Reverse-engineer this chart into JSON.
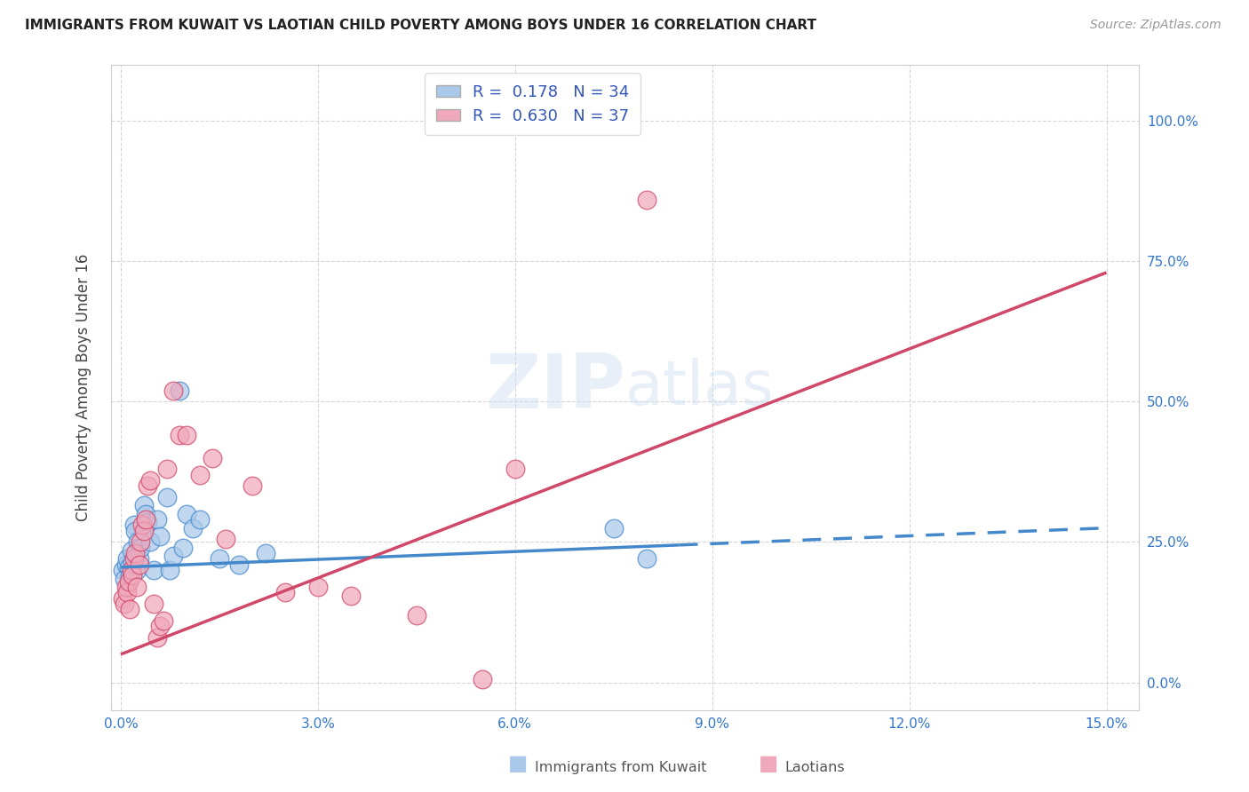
{
  "title": "IMMIGRANTS FROM KUWAIT VS LAOTIAN CHILD POVERTY AMONG BOYS UNDER 16 CORRELATION CHART",
  "source": "Source: ZipAtlas.com",
  "xlabel_vals": [
    0,
    3,
    6,
    9,
    12,
    15
  ],
  "ylabel_vals": [
    0,
    25,
    50,
    75,
    100
  ],
  "xlim": [
    -0.15,
    15.5
  ],
  "ylim": [
    -5,
    110
  ],
  "ylabel": "Child Poverty Among Boys Under 16",
  "kuwait_color": "#aac8ea",
  "kuwait_edge": "#4488cc",
  "laotian_color": "#f0a8bc",
  "laotian_edge": "#d04868",
  "kuwait_R": 0.178,
  "kuwait_N": 34,
  "laotian_R": 0.63,
  "laotian_N": 37,
  "kuwait_scatter_x": [
    0.03,
    0.06,
    0.08,
    0.1,
    0.12,
    0.14,
    0.16,
    0.18,
    0.2,
    0.22,
    0.24,
    0.26,
    0.28,
    0.3,
    0.35,
    0.38,
    0.4,
    0.45,
    0.5,
    0.55,
    0.6,
    0.7,
    0.75,
    0.8,
    0.9,
    0.95,
    1.0,
    1.1,
    1.2,
    1.5,
    1.8,
    2.2,
    7.5,
    8.0
  ],
  "kuwait_scatter_y": [
    20.0,
    18.5,
    21.0,
    22.0,
    20.5,
    19.0,
    23.5,
    21.5,
    28.0,
    27.0,
    20.0,
    25.0,
    22.0,
    24.0,
    31.5,
    30.0,
    28.5,
    25.0,
    20.0,
    29.0,
    26.0,
    33.0,
    20.0,
    22.5,
    52.0,
    24.0,
    30.0,
    27.5,
    29.0,
    22.0,
    21.0,
    23.0,
    27.5,
    22.0
  ],
  "laotian_scatter_x": [
    0.03,
    0.06,
    0.08,
    0.1,
    0.12,
    0.14,
    0.16,
    0.18,
    0.2,
    0.22,
    0.25,
    0.28,
    0.3,
    0.32,
    0.35,
    0.38,
    0.4,
    0.45,
    0.5,
    0.55,
    0.6,
    0.65,
    0.7,
    0.8,
    0.9,
    1.0,
    1.2,
    1.4,
    1.6,
    2.0,
    2.5,
    3.0,
    3.5,
    4.5,
    5.5,
    6.0,
    8.0
  ],
  "laotian_scatter_y": [
    15.0,
    14.0,
    17.0,
    16.0,
    18.0,
    13.0,
    20.0,
    19.0,
    22.0,
    23.0,
    17.0,
    21.0,
    25.0,
    28.0,
    27.0,
    29.0,
    35.0,
    36.0,
    14.0,
    8.0,
    10.0,
    11.0,
    38.0,
    52.0,
    44.0,
    44.0,
    37.0,
    40.0,
    25.5,
    35.0,
    16.0,
    17.0,
    15.5,
    12.0,
    0.5,
    38.0,
    86.0
  ],
  "kuwait_trend_x0": 0.0,
  "kuwait_trend_y0": 20.5,
  "kuwait_trend_x1": 15.0,
  "kuwait_trend_y1": 27.5,
  "kuwait_solid_end_x": 8.5,
  "laotian_trend_x0": 0.0,
  "laotian_trend_y0": 5.0,
  "laotian_trend_x1": 15.0,
  "laotian_trend_y1": 73.0
}
